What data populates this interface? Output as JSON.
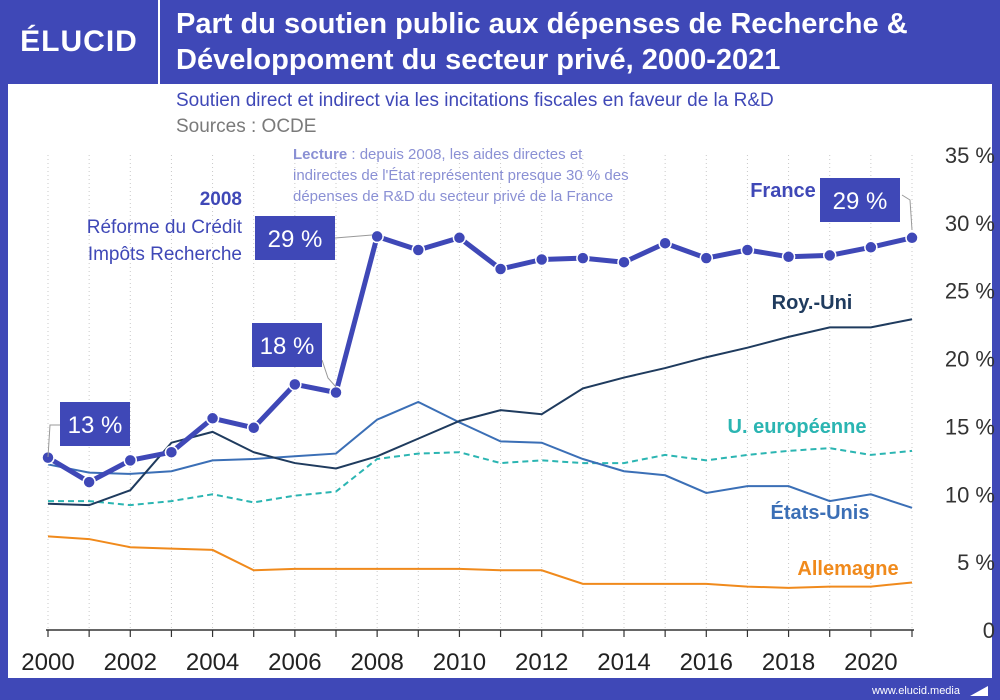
{
  "brand": "ÉLUCID",
  "title": "Part du soutien public aux dépenses de Recherche & Développoment du secteur privé, 2000-2021",
  "subtitle": "Soutien direct et indirect via les incitations fiscales en faveur de la R&D",
  "sources": "Sources : OCDE",
  "footer_url": "www.elucid.media",
  "colors": {
    "france": "#3f48b7",
    "uk": "#1f3b5e",
    "us": "#3b6fb6",
    "eu": "#2bb5b2",
    "de": "#f08a1c",
    "header": "#3f48b7"
  },
  "annotations": {
    "lecture_bold": "Lecture",
    "lecture_text_1": " : depuis 2008, les aides directes et",
    "lecture_text_2": "indirectes de l'État représentent presque 30 % des",
    "lecture_text_3": "dépenses de R&D du secteur privé de la France",
    "reform_year": "2008",
    "reform_line1": "Réforme du Crédit",
    "reform_line2": "Impôts Recherche",
    "badge_2000": "13 %",
    "badge_2006": "18 %",
    "badge_2008": "29 %",
    "badge_2021": "29 %"
  },
  "chart_data": {
    "type": "line",
    "title": "Part du soutien public aux dépenses de Recherche & Développoment du secteur privé, 2000-2021",
    "xlabel": "",
    "ylabel": "",
    "xlim": [
      2000,
      2021
    ],
    "ylim": [
      0,
      35
    ],
    "x_ticks": [
      "2000",
      "2002",
      "2004",
      "2006",
      "2008",
      "2010",
      "2012",
      "2014",
      "2016",
      "2018",
      "2020"
    ],
    "y_ticks": [
      "0",
      "5 %",
      "10 %",
      "15 %",
      "20 %",
      "25 %",
      "30 %",
      "35 %"
    ],
    "x": [
      2000,
      2001,
      2002,
      2003,
      2004,
      2005,
      2006,
      2007,
      2008,
      2009,
      2010,
      2011,
      2012,
      2013,
      2014,
      2015,
      2016,
      2017,
      2018,
      2019,
      2020,
      2021
    ],
    "series": [
      {
        "key": "france",
        "name": "France",
        "style": "bold-markers",
        "values": [
          12.7,
          10.9,
          12.5,
          13.1,
          15.6,
          14.9,
          18.1,
          17.5,
          29.0,
          28.0,
          28.9,
          26.6,
          27.3,
          27.4,
          27.1,
          28.5,
          27.4,
          28.0,
          27.5,
          27.6,
          28.2,
          28.9
        ]
      },
      {
        "key": "uk",
        "name": "Roy.-Uni",
        "style": "solid",
        "values": [
          9.3,
          9.2,
          10.3,
          13.8,
          14.6,
          13.1,
          12.3,
          11.9,
          12.8,
          14.1,
          15.4,
          16.2,
          15.9,
          17.8,
          18.6,
          19.3,
          20.1,
          20.8,
          21.6,
          22.3,
          22.3,
          22.9
        ]
      },
      {
        "key": "us",
        "name": "États-Unis",
        "style": "solid",
        "values": [
          12.2,
          11.6,
          11.5,
          11.7,
          12.5,
          12.6,
          12.8,
          13.0,
          15.5,
          16.8,
          15.3,
          13.9,
          13.8,
          12.6,
          11.7,
          11.4,
          10.1,
          10.6,
          10.6,
          9.5,
          10.0,
          9.0
        ]
      },
      {
        "key": "eu",
        "name": "U. européenne",
        "style": "dashed",
        "values": [
          9.5,
          9.5,
          9.2,
          9.5,
          10.0,
          9.4,
          9.9,
          10.2,
          12.6,
          13.0,
          13.1,
          12.3,
          12.5,
          12.3,
          12.3,
          12.9,
          12.5,
          12.9,
          13.2,
          13.4,
          12.9,
          13.2
        ]
      },
      {
        "key": "de",
        "name": "Allemagne",
        "style": "solid",
        "values": [
          6.9,
          6.7,
          6.1,
          6.0,
          5.9,
          4.4,
          4.5,
          4.5,
          4.5,
          4.5,
          4.5,
          4.4,
          4.4,
          3.4,
          3.4,
          3.4,
          3.4,
          3.2,
          3.1,
          3.2,
          3.2,
          3.5
        ]
      }
    ]
  }
}
